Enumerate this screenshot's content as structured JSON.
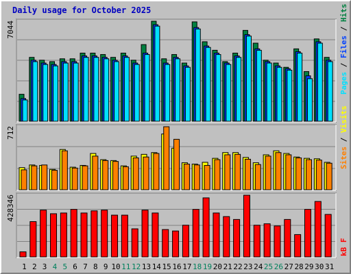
{
  "title": "Daily usage for October 2025",
  "colors": {
    "background": "#c0c0c0",
    "plot": "#c0c0c0",
    "grid": "#808080",
    "title": "#0000c0",
    "hits": "#008040",
    "files": "#0040ff",
    "pages": "#00e0ff",
    "visits": "#ffff00",
    "sites": "#ff8000",
    "kbytes": "#ff0000",
    "weekend_day": "#00805c",
    "weekday": "#000000"
  },
  "labels": {
    "pages": "Pages",
    "files": "Files",
    "hits": "Hits",
    "sites": "Sites",
    "visits": "Visits",
    "kbytes": "kB F",
    "sep": "/"
  },
  "chart_data": [
    {
      "type": "bar",
      "name": "hits-files-pages",
      "max_label": "7044",
      "ymax": 7044,
      "x": [
        1,
        2,
        3,
        4,
        5,
        6,
        7,
        8,
        9,
        10,
        11,
        12,
        13,
        14,
        15,
        16,
        17,
        18,
        19,
        20,
        21,
        22,
        23,
        24,
        25,
        26,
        27,
        28,
        29,
        30,
        31
      ],
      "series": [
        {
          "name": "Hits",
          "values": [
            1900,
            4500,
            4300,
            4200,
            4400,
            4400,
            4800,
            4800,
            4700,
            4500,
            4800,
            4300,
            5400,
            7044,
            4400,
            4700,
            4100,
            7000,
            5600,
            5000,
            4200,
            4800,
            6400,
            5500,
            4300,
            4100,
            3800,
            5100,
            3500,
            5800,
            4500
          ]
        },
        {
          "name": "Files",
          "values": [
            1600,
            4300,
            4100,
            4000,
            4200,
            4200,
            4600,
            4600,
            4500,
            4300,
            4600,
            4100,
            4800,
            6800,
            4100,
            4500,
            3900,
            6600,
            5300,
            4800,
            4100,
            4600,
            6100,
            5100,
            4200,
            3900,
            3700,
            4900,
            3200,
            5600,
            4300
          ]
        },
        {
          "name": "Pages",
          "values": [
            1500,
            4200,
            4000,
            3900,
            4100,
            4100,
            4500,
            4500,
            4400,
            4200,
            4500,
            4000,
            4700,
            6700,
            4000,
            4400,
            3800,
            6500,
            5200,
            4700,
            4000,
            4500,
            6000,
            5000,
            4100,
            3800,
            3600,
            4800,
            3000,
            5500,
            4200
          ]
        }
      ]
    },
    {
      "type": "bar",
      "name": "visits-sites",
      "max_label": "712",
      "ymax": 712,
      "x": [
        1,
        2,
        3,
        4,
        5,
        6,
        7,
        8,
        9,
        10,
        11,
        12,
        13,
        14,
        15,
        16,
        17,
        18,
        19,
        20,
        21,
        22,
        23,
        24,
        25,
        26,
        27,
        28,
        29,
        30,
        31
      ],
      "series": [
        {
          "name": "Visits",
          "values": [
            250,
            280,
            275,
            230,
            455,
            255,
            275,
            410,
            340,
            330,
            270,
            380,
            400,
            420,
            630,
            470,
            305,
            290,
            310,
            355,
            420,
            420,
            365,
            305,
            395,
            440,
            410,
            370,
            355,
            350,
            310
          ]
        },
        {
          "name": "Sites",
          "values": [
            225,
            270,
            280,
            220,
            440,
            245,
            270,
            380,
            330,
            320,
            260,
            360,
            370,
            410,
            712,
            570,
            290,
            280,
            275,
            340,
            395,
            400,
            345,
            285,
            380,
            420,
            395,
            360,
            340,
            335,
            300
          ]
        }
      ]
    },
    {
      "type": "bar",
      "name": "kbytes",
      "max_label": "428346",
      "ymax": 428346,
      "x": [
        1,
        2,
        3,
        4,
        5,
        6,
        7,
        8,
        9,
        10,
        11,
        12,
        13,
        14,
        15,
        16,
        17,
        18,
        19,
        20,
        21,
        22,
        23,
        24,
        25,
        26,
        27,
        28,
        29,
        30,
        31
      ],
      "series": [
        {
          "name": "kB F",
          "values": [
            35000,
            245000,
            325000,
            300000,
            305000,
            330000,
            305000,
            320000,
            325000,
            290000,
            290000,
            195000,
            325000,
            305000,
            190000,
            180000,
            220000,
            330000,
            410000,
            305000,
            280000,
            260000,
            428346,
            220000,
            230000,
            215000,
            260000,
            155000,
            330000,
            385000,
            295000
          ]
        }
      ]
    }
  ],
  "days": [
    "1",
    "2",
    "3",
    "4",
    "5",
    "6",
    "7",
    "8",
    "9",
    "10",
    "11",
    "12",
    "13",
    "14",
    "15",
    "16",
    "17",
    "18",
    "19",
    "20",
    "21",
    "22",
    "23",
    "24",
    "25",
    "26",
    "27",
    "28",
    "29",
    "30",
    "31"
  ],
  "weekend": [
    4,
    5,
    11,
    12,
    18,
    19,
    25,
    26
  ]
}
